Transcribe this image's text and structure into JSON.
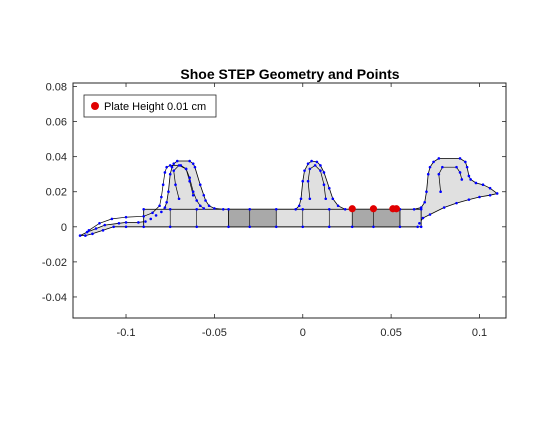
{
  "chart_data": {
    "type": "scatter",
    "title": "Shoe STEP Geometry and Points",
    "xlabel": "",
    "ylabel": "",
    "xlim": [
      -0.13,
      0.115
    ],
    "ylim": [
      -0.052,
      0.082
    ],
    "x_ticks": [
      -0.1,
      -0.05,
      0,
      0.05,
      0.1
    ],
    "x_tick_labels": [
      "-0.1",
      "-0.05",
      "0",
      "0.05",
      "0.1"
    ],
    "y_ticks": [
      -0.04,
      -0.02,
      0,
      0.02,
      0.04,
      0.06,
      0.08
    ],
    "y_tick_labels": [
      "-0.04",
      "-0.02",
      "0",
      "0.02",
      "0.04",
      "0.06",
      "0.08"
    ],
    "grid": false,
    "legend_position": "top-left",
    "legend": [
      {
        "label": "Plate Height 0.01 cm",
        "color": "#e00000",
        "marker": "circle"
      }
    ],
    "series": [
      {
        "name": "Plate Height 0.01 cm",
        "type": "scatter",
        "color": "#e00000",
        "x": [
          0.028,
          0.04,
          0.051,
          0.053
        ],
        "y": [
          0.0103,
          0.0103,
          0.0103,
          0.0103
        ]
      }
    ],
    "geometry": {
      "fill_color": "#e0e0e0",
      "dark_fill_color": "#a9a9a9",
      "edge_color": "#000000",
      "vertex_color": "#0000ff",
      "outer_outline": [
        [
          -0.126,
          -0.005
        ],
        [
          -0.122,
          -0.003
        ],
        [
          -0.117,
          -0.001
        ],
        [
          -0.112,
          0.001
        ],
        [
          -0.104,
          0.002
        ],
        [
          -0.1,
          0.0025
        ],
        [
          -0.093,
          0.0025
        ],
        [
          -0.089,
          0.003
        ],
        [
          -0.086,
          0.0045
        ],
        [
          -0.083,
          0.0065
        ],
        [
          -0.08,
          0.0085
        ],
        [
          -0.078,
          0.011
        ],
        [
          -0.077,
          0.014
        ],
        [
          -0.076,
          0.02
        ],
        [
          -0.075,
          0.03
        ],
        [
          -0.074,
          0.034
        ],
        [
          -0.073,
          0.036
        ],
        [
          -0.071,
          0.0375
        ],
        [
          -0.064,
          0.0375
        ],
        [
          -0.062,
          0.036
        ],
        [
          -0.061,
          0.034
        ],
        [
          -0.058,
          0.024
        ],
        [
          -0.056,
          0.018
        ],
        [
          -0.055,
          0.015
        ],
        [
          -0.053,
          0.012
        ],
        [
          -0.05,
          0.0105
        ],
        [
          -0.045,
          0.01
        ],
        [
          -0.004,
          0.01
        ],
        [
          -0.002,
          0.012
        ],
        [
          -0.001,
          0.016
        ],
        [
          0.0,
          0.026
        ],
        [
          0.001,
          0.032
        ],
        [
          0.003,
          0.036
        ],
        [
          0.005,
          0.0375
        ],
        [
          0.008,
          0.037
        ],
        [
          0.01,
          0.035
        ],
        [
          0.012,
          0.031
        ],
        [
          0.015,
          0.022
        ],
        [
          0.017,
          0.016
        ],
        [
          0.02,
          0.012
        ],
        [
          0.024,
          0.01
        ],
        [
          0.063,
          0.01
        ],
        [
          0.067,
          0.011
        ],
        [
          0.069,
          0.014
        ],
        [
          0.07,
          0.02
        ],
        [
          0.071,
          0.03
        ],
        [
          0.072,
          0.034
        ],
        [
          0.074,
          0.037
        ],
        [
          0.077,
          0.039
        ],
        [
          0.089,
          0.039
        ],
        [
          0.092,
          0.037
        ],
        [
          0.093,
          0.034
        ],
        [
          0.094,
          0.029
        ],
        [
          0.095,
          0.027
        ],
        [
          0.098,
          0.025
        ],
        [
          0.102,
          0.024
        ],
        [
          0.106,
          0.022
        ],
        [
          0.11,
          0.019
        ],
        [
          0.106,
          0.018
        ],
        [
          0.1,
          0.017
        ],
        [
          0.094,
          0.0155
        ],
        [
          0.087,
          0.0135
        ],
        [
          0.08,
          0.011
        ],
        [
          0.072,
          0.007
        ],
        [
          0.068,
          0.005
        ],
        [
          0.066,
          0.002
        ],
        [
          0.065,
          0.0
        ],
        [
          -0.1,
          0.0
        ],
        [
          -0.107,
          0.0
        ],
        [
          -0.113,
          -0.002
        ],
        [
          -0.119,
          -0.004
        ],
        [
          -0.123,
          -0.005
        ]
      ],
      "inner_outline": [
        [
          -0.121,
          -0.002
        ],
        [
          -0.115,
          0.002
        ],
        [
          -0.108,
          0.0045
        ],
        [
          -0.1,
          0.0055
        ],
        [
          -0.09,
          0.006
        ],
        [
          -0.085,
          0.008
        ],
        [
          -0.081,
          0.012
        ],
        [
          -0.08,
          0.017
        ],
        [
          -0.079,
          0.024
        ],
        [
          -0.078,
          0.031
        ],
        [
          -0.077,
          0.034
        ],
        [
          -0.075,
          0.035
        ],
        [
          -0.069,
          0.035
        ],
        [
          -0.066,
          0.033
        ],
        [
          -0.064,
          0.028
        ],
        [
          -0.062,
          0.02
        ],
        [
          -0.06,
          0.015
        ],
        [
          -0.058,
          0.012
        ],
        [
          -0.056,
          0.0105
        ]
      ],
      "plate": {
        "x0": -0.09,
        "x1": 0.067,
        "y0": 0.0,
        "y1": 0.01
      },
      "dark_segments": [
        {
          "x0": -0.042,
          "x1": -0.015
        },
        {
          "x0": 0.028,
          "x1": 0.055
        }
      ],
      "plate_dividers": [
        -0.09,
        -0.075,
        -0.06,
        -0.042,
        -0.03,
        -0.015,
        0.0,
        0.015,
        0.028,
        0.04,
        0.055,
        0.067
      ],
      "hole_outlines": [
        [
          [
            -0.07,
            0.016
          ],
          [
            -0.072,
            0.024
          ],
          [
            -0.073,
            0.032
          ],
          [
            -0.07,
            0.035
          ],
          [
            -0.066,
            0.033
          ],
          [
            -0.064,
            0.026
          ],
          [
            -0.062,
            0.018
          ]
        ],
        [
          [
            0.004,
            0.016
          ],
          [
            0.003,
            0.026
          ],
          [
            0.004,
            0.033
          ],
          [
            0.007,
            0.035
          ],
          [
            0.01,
            0.032
          ],
          [
            0.012,
            0.024
          ],
          [
            0.013,
            0.016
          ]
        ],
        [
          [
            0.078,
            0.02
          ],
          [
            0.077,
            0.03
          ],
          [
            0.079,
            0.034
          ],
          [
            0.087,
            0.034
          ],
          [
            0.089,
            0.031
          ],
          [
            0.09,
            0.027
          ]
        ]
      ]
    }
  }
}
